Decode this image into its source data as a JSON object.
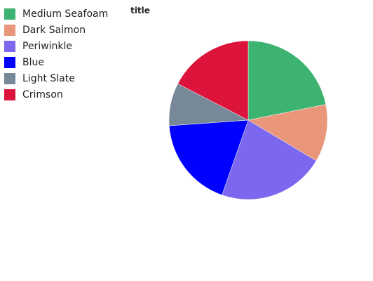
{
  "chart_data": {
    "type": "pie",
    "title": "title",
    "legend_position": "left",
    "start_angle_deg": 90,
    "direction": "clockwise",
    "slices": [
      {
        "label": "Medium Seafoam",
        "value": 20.3,
        "color": "#3cb371"
      },
      {
        "label": "Dark Salmon",
        "value": 10.9,
        "color": "#e9967a"
      },
      {
        "label": "Periwinkle",
        "value": 20.3,
        "color": "#7b68ee"
      },
      {
        "label": "Blue",
        "value": 17.2,
        "color": "#0000ff"
      },
      {
        "label": "Light Slate",
        "value": 8.1,
        "color": "#778899"
      },
      {
        "label": "Crimson",
        "value": 16.2,
        "color": "#dc143c"
      }
    ]
  }
}
